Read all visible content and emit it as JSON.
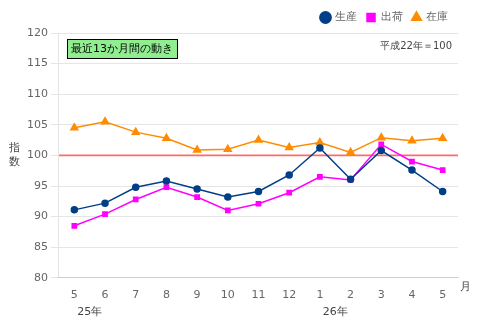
{
  "chart_data": {
    "type": "line",
    "categories": [
      "5",
      "6",
      "7",
      "8",
      "9",
      "10",
      "11",
      "12",
      "1",
      "2",
      "3",
      "4",
      "5"
    ],
    "series": [
      {
        "name": "生産",
        "color": "#003f87",
        "marker": "circle",
        "values": [
          91.1,
          92.2,
          94.8,
          95.8,
          94.5,
          93.2,
          94.1,
          96.8,
          101.2,
          96.1,
          100.8,
          97.6,
          94.1
        ]
      },
      {
        "name": "出荷",
        "color": "#ff00ff",
        "marker": "square",
        "values": [
          88.5,
          90.4,
          92.8,
          94.8,
          93.2,
          91.0,
          92.1,
          93.9,
          96.5,
          96.0,
          101.8,
          99.0,
          97.6
        ]
      },
      {
        "name": "在庫",
        "color": "#ff8c00",
        "marker": "triangle",
        "values": [
          104.5,
          105.5,
          103.8,
          102.8,
          100.9,
          101.0,
          102.5,
          101.3,
          102.1,
          100.5,
          102.9,
          102.4,
          102.8
        ]
      }
    ],
    "ylim": [
      80,
      120
    ],
    "yticks": [
      80,
      85,
      90,
      95,
      100,
      105,
      110,
      115,
      120
    ],
    "ylabel": "指\n数",
    "xlabel_suffix": "月",
    "reference_line": {
      "value": 100,
      "color": "#ff6b6b"
    },
    "box_label": {
      "text": "最近13か月間の動き",
      "color": "#90ee90"
    },
    "note_text": "平成22年＝100",
    "year_labels": [
      {
        "text": "25年",
        "category_index": 0
      },
      {
        "text": "26年",
        "category_index": 8
      }
    ],
    "grid": true,
    "legend": "upper right"
  }
}
